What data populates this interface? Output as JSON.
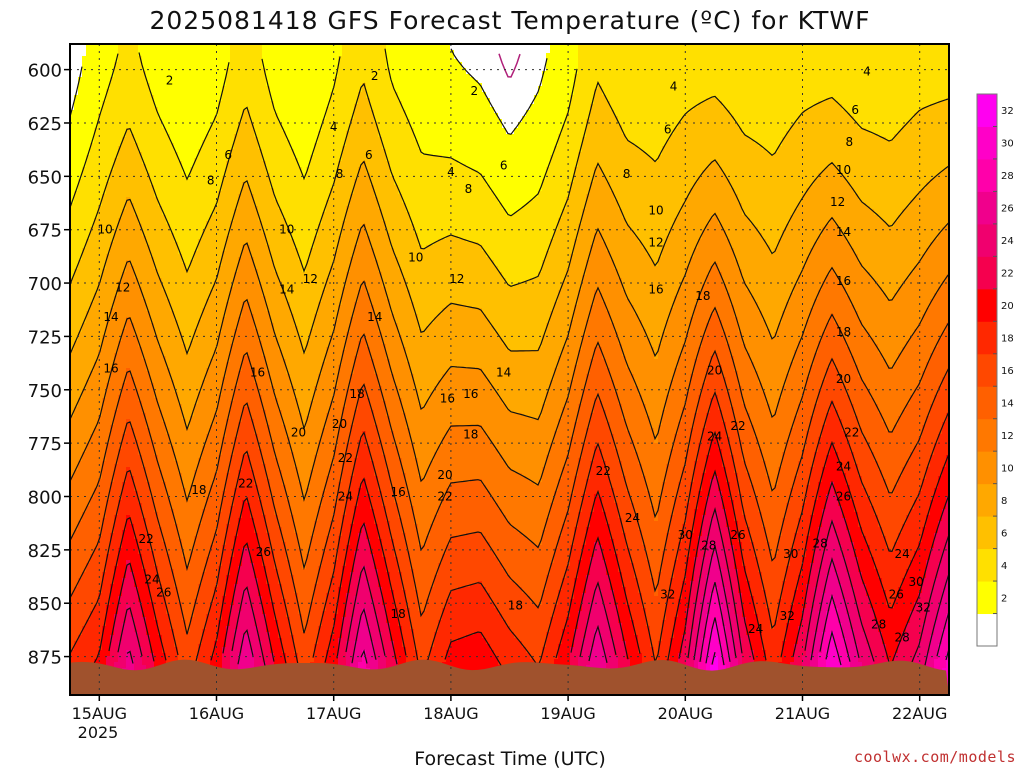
{
  "chart_data": {
    "type": "heatmap",
    "title": "2025081418 GFS Forecast Temperature (ºC) for KTWF",
    "xlabel": "Forecast Time (UTC)",
    "ylabel": "",
    "y_axis": {
      "ticks": [
        600,
        625,
        650,
        675,
        700,
        725,
        750,
        775,
        800,
        825,
        850,
        875
      ],
      "range": [
        588,
        893
      ],
      "units": "hPa"
    },
    "x_axis": {
      "ticks": [
        "15AUG",
        "16AUG",
        "17AUG",
        "18AUG",
        "19AUG",
        "20AUG",
        "21AUG",
        "22AUG"
      ],
      "year_label": "2025",
      "range_days": [
        14.75,
        22.25
      ]
    },
    "colorbar": {
      "labels": [
        2,
        4,
        6,
        8,
        10,
        12,
        14,
        16,
        18,
        20,
        22,
        24,
        26,
        28,
        30,
        32
      ],
      "levels": [
        0,
        2,
        4,
        6,
        8,
        10,
        12,
        14,
        16,
        18,
        20,
        22,
        24,
        26,
        28,
        30,
        32,
        34
      ],
      "colors": [
        "#ffffff",
        "#ffff00",
        "#ffe000",
        "#ffc000",
        "#ffa800",
        "#ff9000",
        "#ff7800",
        "#ff6000",
        "#ff4800",
        "#ff2800",
        "#ff0000",
        "#f5004e",
        "#f0006e",
        "#f0008c",
        "#ff00aa",
        "#ff00c8",
        "#ff00f0"
      ]
    },
    "series": [
      {
        "values": [
          [
            14.75,
            18.5
          ],
          [
            15.0,
            20.5
          ],
          [
            15.25,
            27.0
          ],
          [
            15.5,
            21.5
          ],
          [
            15.75,
            17.0
          ],
          [
            16.0,
            21.0
          ],
          [
            16.25,
            28.0
          ],
          [
            16.5,
            22.0
          ],
          [
            16.75,
            17.0
          ],
          [
            17.0,
            21.5
          ],
          [
            17.25,
            29.0
          ],
          [
            17.5,
            23.0
          ],
          [
            17.75,
            17.5
          ],
          [
            18.0,
            21.0
          ],
          [
            18.25,
            21.5
          ],
          [
            18.5,
            19.5
          ],
          [
            18.75,
            18.0
          ],
          [
            19.0,
            22.0
          ],
          [
            19.25,
            28.0
          ],
          [
            19.5,
            22.5
          ],
          [
            19.75,
            18.0
          ],
          [
            20.0,
            23.5
          ],
          [
            20.25,
            33.0
          ],
          [
            20.5,
            24.0
          ],
          [
            20.75,
            19.0
          ],
          [
            21.0,
            24.0
          ],
          [
            21.25,
            32.0
          ],
          [
            21.5,
            26.0
          ],
          [
            21.75,
            22.0
          ],
          [
            22.0,
            25.0
          ],
          [
            22.25,
            31.0
          ]
        ]
      },
      {
        "values": [
          [
            14.75,
            1.0
          ],
          [
            15.0,
            3.0
          ],
          [
            15.25,
            4.5
          ],
          [
            15.5,
            3.0
          ],
          [
            15.75,
            2.0
          ],
          [
            16.0,
            3.0
          ],
          [
            16.25,
            5.0
          ],
          [
            16.5,
            3.0
          ],
          [
            16.75,
            2.0
          ],
          [
            17.0,
            3.5
          ],
          [
            17.25,
            5.5
          ],
          [
            17.5,
            3.5
          ],
          [
            17.75,
            2.5
          ],
          [
            18.0,
            2.0
          ],
          [
            18.25,
            1.5
          ],
          [
            18.5,
            0.5
          ],
          [
            18.75,
            1.5
          ],
          [
            19.0,
            3.0
          ],
          [
            19.25,
            5.5
          ],
          [
            19.5,
            4.5
          ],
          [
            19.75,
            4.5
          ],
          [
            20.0,
            5.0
          ],
          [
            20.25,
            5.0
          ],
          [
            20.5,
            4.5
          ],
          [
            20.75,
            4.5
          ],
          [
            21.0,
            5.0
          ],
          [
            21.25,
            5.0
          ],
          [
            21.5,
            4.5
          ],
          [
            21.75,
            4.5
          ],
          [
            22.0,
            5.0
          ],
          [
            22.25,
            5.0
          ]
        ]
      }
    ],
    "contour_labels": [
      {
        "text": "2",
        "x": 15.6,
        "p": 605
      },
      {
        "text": "2",
        "x": 17.35,
        "p": 603
      },
      {
        "text": "2",
        "x": 18.2,
        "p": 610
      },
      {
        "text": "4",
        "x": 17.0,
        "p": 627
      },
      {
        "text": "4",
        "x": 18.0,
        "p": 648
      },
      {
        "text": "4",
        "x": 19.9,
        "p": 608
      },
      {
        "text": "4",
        "x": 21.55,
        "p": 601
      },
      {
        "text": "6",
        "x": 16.1,
        "p": 640
      },
      {
        "text": "6",
        "x": 17.3,
        "p": 640
      },
      {
        "text": "6",
        "x": 18.45,
        "p": 645
      },
      {
        "text": "6",
        "x": 19.85,
        "p": 628
      },
      {
        "text": "6",
        "x": 21.45,
        "p": 619
      },
      {
        "text": "8",
        "x": 15.95,
        "p": 652
      },
      {
        "text": "8",
        "x": 17.05,
        "p": 649
      },
      {
        "text": "8",
        "x": 18.15,
        "p": 656
      },
      {
        "text": "8",
        "x": 19.5,
        "p": 649
      },
      {
        "text": "8",
        "x": 21.4,
        "p": 634
      },
      {
        "text": "10",
        "x": 15.05,
        "p": 675
      },
      {
        "text": "10",
        "x": 16.6,
        "p": 675
      },
      {
        "text": "10",
        "x": 17.7,
        "p": 688
      },
      {
        "text": "10",
        "x": 19.75,
        "p": 666
      },
      {
        "text": "10",
        "x": 21.35,
        "p": 647
      },
      {
        "text": "12",
        "x": 15.2,
        "p": 702
      },
      {
        "text": "12",
        "x": 16.8,
        "p": 698
      },
      {
        "text": "12",
        "x": 18.05,
        "p": 698
      },
      {
        "text": "12",
        "x": 19.75,
        "p": 681
      },
      {
        "text": "12",
        "x": 21.3,
        "p": 662
      },
      {
        "text": "14",
        "x": 15.1,
        "p": 716
      },
      {
        "text": "14",
        "x": 16.6,
        "p": 703
      },
      {
        "text": "14",
        "x": 17.35,
        "p": 716
      },
      {
        "text": "14",
        "x": 18.45,
        "p": 742
      },
      {
        "text": "14",
        "x": 21.35,
        "p": 676
      },
      {
        "text": "16",
        "x": 15.1,
        "p": 740
      },
      {
        "text": "16",
        "x": 16.35,
        "p": 742
      },
      {
        "text": "16",
        "x": 17.55,
        "p": 798
      },
      {
        "text": "16",
        "x": 17.97,
        "p": 754
      },
      {
        "text": "16",
        "x": 18.17,
        "p": 752
      },
      {
        "text": "16",
        "x": 19.75,
        "p": 703
      },
      {
        "text": "16",
        "x": 21.35,
        "p": 699
      },
      {
        "text": "18",
        "x": 15.85,
        "p": 797
      },
      {
        "text": "18",
        "x": 17.2,
        "p": 752
      },
      {
        "text": "18",
        "x": 17.55,
        "p": 855
      },
      {
        "text": "18",
        "x": 18.17,
        "p": 771
      },
      {
        "text": "18",
        "x": 18.55,
        "p": 851
      },
      {
        "text": "18",
        "x": 20.15,
        "p": 706
      },
      {
        "text": "18",
        "x": 21.35,
        "p": 723
      },
      {
        "text": "20",
        "x": 16.7,
        "p": 770
      },
      {
        "text": "20",
        "x": 17.05,
        "p": 766
      },
      {
        "text": "20",
        "x": 17.95,
        "p": 790
      },
      {
        "text": "20",
        "x": 20.25,
        "p": 741
      },
      {
        "text": "20",
        "x": 21.35,
        "p": 745
      },
      {
        "text": "22",
        "x": 15.4,
        "p": 820
      },
      {
        "text": "22",
        "x": 16.25,
        "p": 794
      },
      {
        "text": "22",
        "x": 17.1,
        "p": 782
      },
      {
        "text": "22",
        "x": 17.95,
        "p": 800
      },
      {
        "text": "22",
        "x": 19.3,
        "p": 788
      },
      {
        "text": "22",
        "x": 20.45,
        "p": 767
      },
      {
        "text": "22",
        "x": 21.42,
        "p": 770
      },
      {
        "text": "24",
        "x": 15.45,
        "p": 839
      },
      {
        "text": "24",
        "x": 17.1,
        "p": 800
      },
      {
        "text": "24",
        "x": 19.55,
        "p": 810
      },
      {
        "text": "24",
        "x": 20.25,
        "p": 772
      },
      {
        "text": "24",
        "x": 21.35,
        "p": 786
      },
      {
        "text": "24",
        "x": 20.6,
        "p": 862
      },
      {
        "text": "24",
        "x": 21.85,
        "p": 827
      },
      {
        "text": "26",
        "x": 16.4,
        "p": 826
      },
      {
        "text": "26",
        "x": 15.55,
        "p": 845
      },
      {
        "text": "26",
        "x": 20.45,
        "p": 818
      },
      {
        "text": "26",
        "x": 21.35,
        "p": 800
      },
      {
        "text": "26",
        "x": 21.8,
        "p": 846
      },
      {
        "text": "28",
        "x": 20.2,
        "p": 823
      },
      {
        "text": "28",
        "x": 21.15,
        "p": 822
      },
      {
        "text": "28",
        "x": 21.85,
        "p": 866
      },
      {
        "text": "30",
        "x": 20.0,
        "p": 818
      },
      {
        "text": "30",
        "x": 20.9,
        "p": 827
      },
      {
        "text": "30",
        "x": 21.97,
        "p": 840
      },
      {
        "text": "32",
        "x": 19.85,
        "p": 846
      },
      {
        "text": "32",
        "x": 20.87,
        "p": 856
      },
      {
        "text": "32",
        "x": 22.03,
        "p": 852
      },
      {
        "text": "28",
        "x": 21.65,
        "p": 860
      }
    ],
    "grid": true,
    "legend_position": "right"
  },
  "watermark": "coolwx.com/models"
}
